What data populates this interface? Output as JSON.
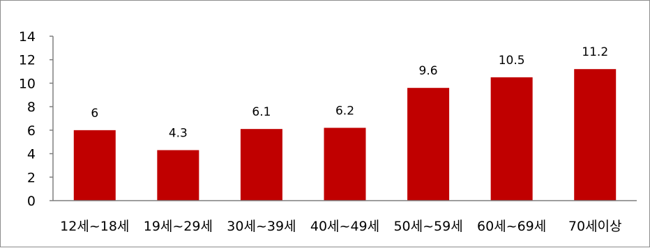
{
  "chart_data": {
    "type": "bar",
    "categories": [
      "12세~18세",
      "19세~29세",
      "30세~39세",
      "40세~49세",
      "50세~59세",
      "60세~69세",
      "70세이상"
    ],
    "values": [
      6,
      4.3,
      6.1,
      6.2,
      9.6,
      10.5,
      11.2
    ],
    "value_labels": [
      "6",
      "4.3",
      "6.1",
      "6.2",
      "9.6",
      "10.5",
      "11.2"
    ],
    "y_ticks": [
      "0",
      "2",
      "4",
      "6",
      "8",
      "10",
      "12",
      "14"
    ],
    "ylim": [
      0,
      14
    ],
    "grid": false,
    "legend": "none",
    "bar_color": "#c00000",
    "axis_color": "#7f7f7f"
  }
}
